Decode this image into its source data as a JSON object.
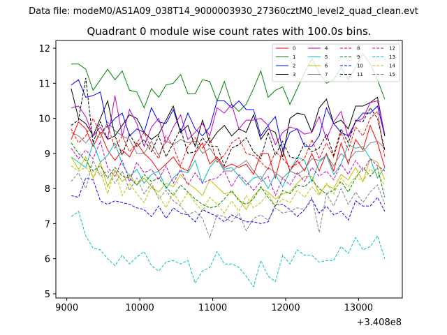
{
  "chart_data": {
    "type": "line",
    "suptitle": "Data file: modeM0/AS1A09_038T14_9000003930_27360cztM0_level2_quad_clean.evt",
    "title": "Quadrant 0 module wise count rates with 100.0s bins.",
    "xlabel": "",
    "ylabel": "",
    "x_offset_label": "+3.408e8",
    "xlim": [
      8850,
      13600
    ],
    "ylim": [
      4.88,
      12.22
    ],
    "xticks": [
      9000,
      10000,
      11000,
      12000,
      13000
    ],
    "xtick_labels": [
      "9000",
      "10000",
      "11000",
      "12000",
      "13000"
    ],
    "yticks": [
      5,
      6,
      7,
      8,
      9,
      10,
      11,
      12
    ],
    "ytick_labels": [
      "5",
      "6",
      "7",
      "8",
      "9",
      "10",
      "11",
      "12"
    ],
    "legend_position": "top-right",
    "x": [
      9060,
      9160,
      9260,
      9360,
      9460,
      9560,
      9660,
      9760,
      9860,
      9960,
      10060,
      10160,
      10260,
      10360,
      10460,
      10560,
      10660,
      10760,
      10860,
      10960,
      11060,
      11160,
      11260,
      11360,
      11460,
      11560,
      11660,
      11760,
      11860,
      11960,
      12060,
      12160,
      12260,
      12360,
      12460,
      12560,
      12660,
      12760,
      12860,
      12960,
      13060,
      13160,
      13260,
      13360
    ],
    "series": [
      {
        "name": "0",
        "color": "#ff0000",
        "dash": "solid",
        "values": [
          9.4,
          9.9,
          9.7,
          9.2,
          9.6,
          9.1,
          8.8,
          9.1,
          8.9,
          9.3,
          9.0,
          8.8,
          8.5,
          8.7,
          8.9,
          8.6,
          8.5,
          9.0,
          9.3,
          8.7,
          8.9,
          8.6,
          8.7,
          8.6,
          8.7,
          8.4,
          9.0,
          9.0,
          8.3,
          9.1,
          8.5,
          8.8,
          8.5,
          9.0,
          8.5,
          9.0,
          8.5,
          9.3,
          8.7,
          9.4,
          9.1,
          9.8,
          9.3,
          8.6
        ]
      },
      {
        "name": "1",
        "color": "#008000",
        "dash": "solid",
        "values": [
          11.55,
          11.55,
          11.4,
          10.8,
          11.1,
          11.4,
          11.1,
          11.35,
          10.8,
          10.75,
          10.3,
          10.85,
          10.6,
          10.95,
          11.0,
          11.25,
          10.7,
          10.7,
          11.1,
          11.05,
          10.5,
          11.05,
          10.4,
          10.2,
          10.4,
          10.85,
          11.35,
          10.6,
          10.8,
          10.9,
          10.4,
          10.85,
          11.3,
          11.7,
          11.3,
          11.0,
          11.1,
          11.45,
          11.1,
          11.45,
          11.85,
          11.55,
          11.1,
          10.55
        ]
      },
      {
        "name": "2",
        "color": "#0000ff",
        "dash": "solid",
        "values": [
          10.95,
          11.1,
          10.6,
          10.65,
          10.75,
          9.75,
          10.0,
          10.15,
          9.5,
          9.7,
          9.6,
          10.3,
          9.9,
          9.85,
          10.25,
          9.6,
          10.15,
          9.7,
          9.5,
          9.75,
          10.5,
          10.5,
          10.3,
          10.5,
          10.25,
          10.25,
          9.5,
          9.8,
          10.05,
          9.1,
          9.6,
          9.7,
          9.2,
          9.2,
          9.5,
          10.3,
          9.85,
          9.6,
          9.5,
          9.9,
          10.15,
          10.15,
          10.35,
          9.5
        ]
      },
      {
        "name": "3",
        "color": "#000000",
        "dash": "solid",
        "values": [
          10.85,
          10.0,
          9.85,
          9.5,
          10.0,
          10.5,
          9.5,
          9.8,
          10.1,
          10.0,
          9.6,
          9.4,
          9.55,
          9.95,
          10.35,
          9.6,
          9.8,
          9.2,
          9.95,
          9.3,
          9.6,
          9.8,
          9.5,
          9.7,
          9.6,
          10.1,
          9.4,
          9.7,
          9.6,
          8.9,
          10.0,
          10.15,
          10.1,
          9.6,
          10.3,
          10.55,
          9.85,
          9.95,
          9.7,
          10.35,
          10.35,
          10.45,
          10.6,
          9.5
        ]
      },
      {
        "name": "4",
        "color": "#bf00bf",
        "dash": "solid",
        "values": [
          10.3,
          10.35,
          10.05,
          9.5,
          9.75,
          9.4,
          10.65,
          9.5,
          10.25,
          9.85,
          9.2,
          9.75,
          10.0,
          9.3,
          9.75,
          10.1,
          9.4,
          9.6,
          9.85,
          9.5,
          10.3,
          10.15,
          10.4,
          9.7,
          9.95,
          9.95,
          10.0,
          9.8,
          9.25,
          9.6,
          9.75,
          9.7,
          9.55,
          9.6,
          10.05,
          9.4,
          9.9,
          10.2,
          9.45,
          9.9,
          10.0,
          10.45,
          10.5,
          9.55
        ]
      },
      {
        "name": "5",
        "color": "#00bfbf",
        "dash": "solid",
        "values": [
          8.9,
          8.75,
          8.6,
          9.3,
          8.75,
          8.95,
          9.3,
          8.7,
          8.35,
          8.55,
          8.15,
          8.4,
          8.5,
          8.0,
          8.3,
          8.5,
          8.45,
          8.8,
          8.15,
          8.6,
          8.85,
          8.55,
          8.6,
          8.35,
          8.1,
          8.3,
          8.35,
          8.0,
          8.4,
          8.05,
          8.5,
          8.9,
          8.8,
          8.2,
          8.75,
          8.95,
          8.4,
          8.7,
          9.25,
          9.15,
          9.2,
          8.85,
          8.3,
          8.6
        ]
      },
      {
        "name": "6",
        "color": "#bfbf00",
        "dash": "solid",
        "values": [
          8.9,
          8.55,
          8.9,
          8.3,
          8.75,
          8.05,
          8.5,
          8.2,
          8.4,
          8.1,
          8.3,
          8.05,
          7.9,
          8.15,
          8.05,
          8.4,
          8.15,
          8.0,
          7.8,
          8.25,
          8.05,
          7.85,
          7.9,
          7.7,
          7.4,
          7.8,
          8.0,
          7.9,
          7.7,
          7.85,
          7.9,
          8.15,
          8.35,
          8.35,
          7.85,
          8.1,
          8.0,
          8.4,
          8.25,
          8.6,
          8.2,
          8.85,
          8.75,
          8.25
        ]
      },
      {
        "name": "7",
        "color": "#7f7f7f",
        "dash": "solid",
        "values": [
          9.6,
          9.5,
          9.3,
          9.55,
          9.45,
          9.9,
          9.65,
          9.5,
          9.4,
          9.0,
          9.0,
          9.35,
          8.95,
          9.35,
          9.25,
          9.4,
          9.3,
          9.35,
          9.0,
          9.15,
          8.85,
          8.5,
          8.5,
          8.65,
          8.8,
          8.5,
          8.25,
          8.6,
          8.45,
          8.3,
          8.5,
          8.4,
          8.55,
          8.85,
          8.8,
          8.95,
          8.65,
          9.0,
          8.8,
          9.05,
          9.05,
          9.3,
          9.35,
          9.15
        ]
      },
      {
        "name": "8",
        "color": "#ff0000",
        "dash": "dashed",
        "values": [
          9.7,
          9.3,
          9.5,
          10.0,
          9.55,
          9.8,
          9.15,
          9.5,
          9.05,
          9.3,
          9.6,
          9.15,
          8.85,
          9.5,
          9.2,
          8.65,
          9.2,
          9.45,
          9.15,
          9.45,
          8.75,
          8.95,
          9.3,
          9.45,
          9.0,
          8.95,
          8.75,
          8.55,
          9.05,
          8.85,
          8.6,
          8.7,
          8.85,
          9.4,
          8.85,
          9.3,
          8.9,
          9.6,
          9.1,
          9.75,
          9.5,
          10.0,
          10.2,
          8.9
        ]
      },
      {
        "name": "9",
        "color": "#008000",
        "dash": "dashed",
        "values": [
          9.3,
          9.0,
          8.8,
          8.5,
          8.65,
          8.3,
          8.6,
          8.35,
          8.3,
          8.1,
          8.4,
          8.2,
          8.3,
          8.05,
          7.8,
          8.1,
          7.9,
          7.7,
          7.55,
          7.45,
          7.5,
          7.7,
          7.95,
          7.65,
          7.55,
          7.7,
          8.05,
          7.75,
          7.5,
          7.95,
          7.85,
          8.1,
          8.05,
          8.25,
          8.0,
          7.85,
          7.95,
          8.2,
          7.9,
          8.3,
          8.6,
          8.35,
          8.6,
          7.75
        ]
      },
      {
        "name": "10",
        "color": "#0000ff",
        "dash": "dashed",
        "values": [
          7.8,
          7.75,
          8.3,
          8.25,
          7.65,
          7.55,
          7.65,
          7.6,
          7.55,
          7.45,
          7.4,
          7.2,
          7.5,
          7.15,
          7.45,
          7.3,
          7.25,
          7.05,
          7.4,
          7.3,
          7.2,
          7.05,
          7.25,
          7.15,
          7.05,
          7.05,
          7.0,
          7.05,
          7.55,
          7.55,
          7.4,
          7.2,
          7.4,
          7.7,
          7.3,
          7.5,
          7.25,
          7.35,
          7.1,
          7.65,
          7.5,
          7.5,
          7.75,
          7.35
        ]
      },
      {
        "name": "11",
        "color": "#000000",
        "dash": "dashed",
        "values": [
          9.8,
          9.95,
          11.15,
          9.3,
          9.9,
          9.4,
          9.5,
          8.95,
          9.55,
          9.2,
          9.4,
          9.05,
          9.5,
          8.9,
          9.3,
          9.7,
          9.0,
          9.05,
          9.45,
          9.2,
          9.2,
          8.65,
          9.15,
          9.25,
          9.45,
          9.05,
          8.85,
          9.6,
          8.95,
          9.35,
          8.9,
          8.85,
          9.3,
          9.05,
          9.15,
          9.55,
          8.95,
          9.7,
          9.3,
          9.95,
          9.9,
          10.3,
          10.0,
          9.1
        ]
      },
      {
        "name": "12",
        "color": "#bf00bf",
        "dash": "dashed",
        "values": [
          9.15,
          8.85,
          9.1,
          8.85,
          9.35,
          8.6,
          8.35,
          8.8,
          8.2,
          8.75,
          8.45,
          8.55,
          8.25,
          8.65,
          8.15,
          8.55,
          8.1,
          8.45,
          8.15,
          8.25,
          8.3,
          8.5,
          8.05,
          8.4,
          8.2,
          7.95,
          8.2,
          8.35,
          7.8,
          8.3,
          8.1,
          8.45,
          8.2,
          8.6,
          8.35,
          8.5,
          8.25,
          8.7,
          8.4,
          8.8,
          8.5,
          8.85,
          8.65,
          8.5
        ]
      },
      {
        "name": "13",
        "color": "#00bfbf",
        "dash": "dashed",
        "values": [
          7.2,
          7.35,
          6.65,
          6.3,
          6.25,
          6.0,
          5.8,
          6.1,
          5.85,
          6.05,
          6.2,
          5.8,
          5.65,
          5.9,
          5.95,
          5.85,
          5.95,
          5.3,
          5.65,
          5.75,
          6.2,
          5.85,
          5.85,
          5.75,
          5.5,
          5.2,
          5.95,
          5.5,
          5.35,
          6.1,
          5.85,
          6.25,
          6.1,
          6.1,
          5.9,
          5.95,
          5.95,
          6.35,
          6.15,
          6.6,
          6.25,
          6.35,
          6.65,
          6.0
        ]
      },
      {
        "name": "14",
        "color": "#bfbf00",
        "dash": "dashed",
        "values": [
          8.65,
          8.5,
          8.6,
          8.35,
          8.5,
          7.85,
          8.55,
          7.8,
          8.15,
          7.85,
          7.6,
          8.05,
          7.8,
          7.45,
          7.9,
          7.55,
          7.9,
          7.6,
          7.35,
          7.75,
          7.55,
          7.3,
          7.65,
          7.35,
          7.8,
          7.45,
          7.6,
          7.85,
          7.5,
          7.7,
          7.6,
          7.95,
          7.75,
          8.05,
          7.8,
          8.15,
          7.85,
          8.3,
          8.05,
          8.35,
          8.2,
          8.55,
          8.4,
          8.1
        ]
      },
      {
        "name": "15",
        "color": "#7f7f7f",
        "dash": "dashed",
        "values": [
          8.2,
          8.45,
          8.0,
          8.8,
          8.35,
          8.5,
          8.15,
          8.5,
          7.95,
          8.3,
          7.85,
          8.15,
          7.7,
          7.95,
          7.65,
          7.5,
          7.25,
          7.35,
          7.15,
          6.6,
          7.25,
          7.2,
          7.05,
          7.3,
          6.8,
          7.15,
          7.25,
          7.1,
          7.45,
          7.3,
          7.35,
          7.45,
          7.4,
          7.75,
          6.75,
          7.85,
          7.5,
          8.0,
          7.55,
          7.9,
          7.6,
          7.9,
          8.1,
          7.55
        ]
      }
    ]
  }
}
